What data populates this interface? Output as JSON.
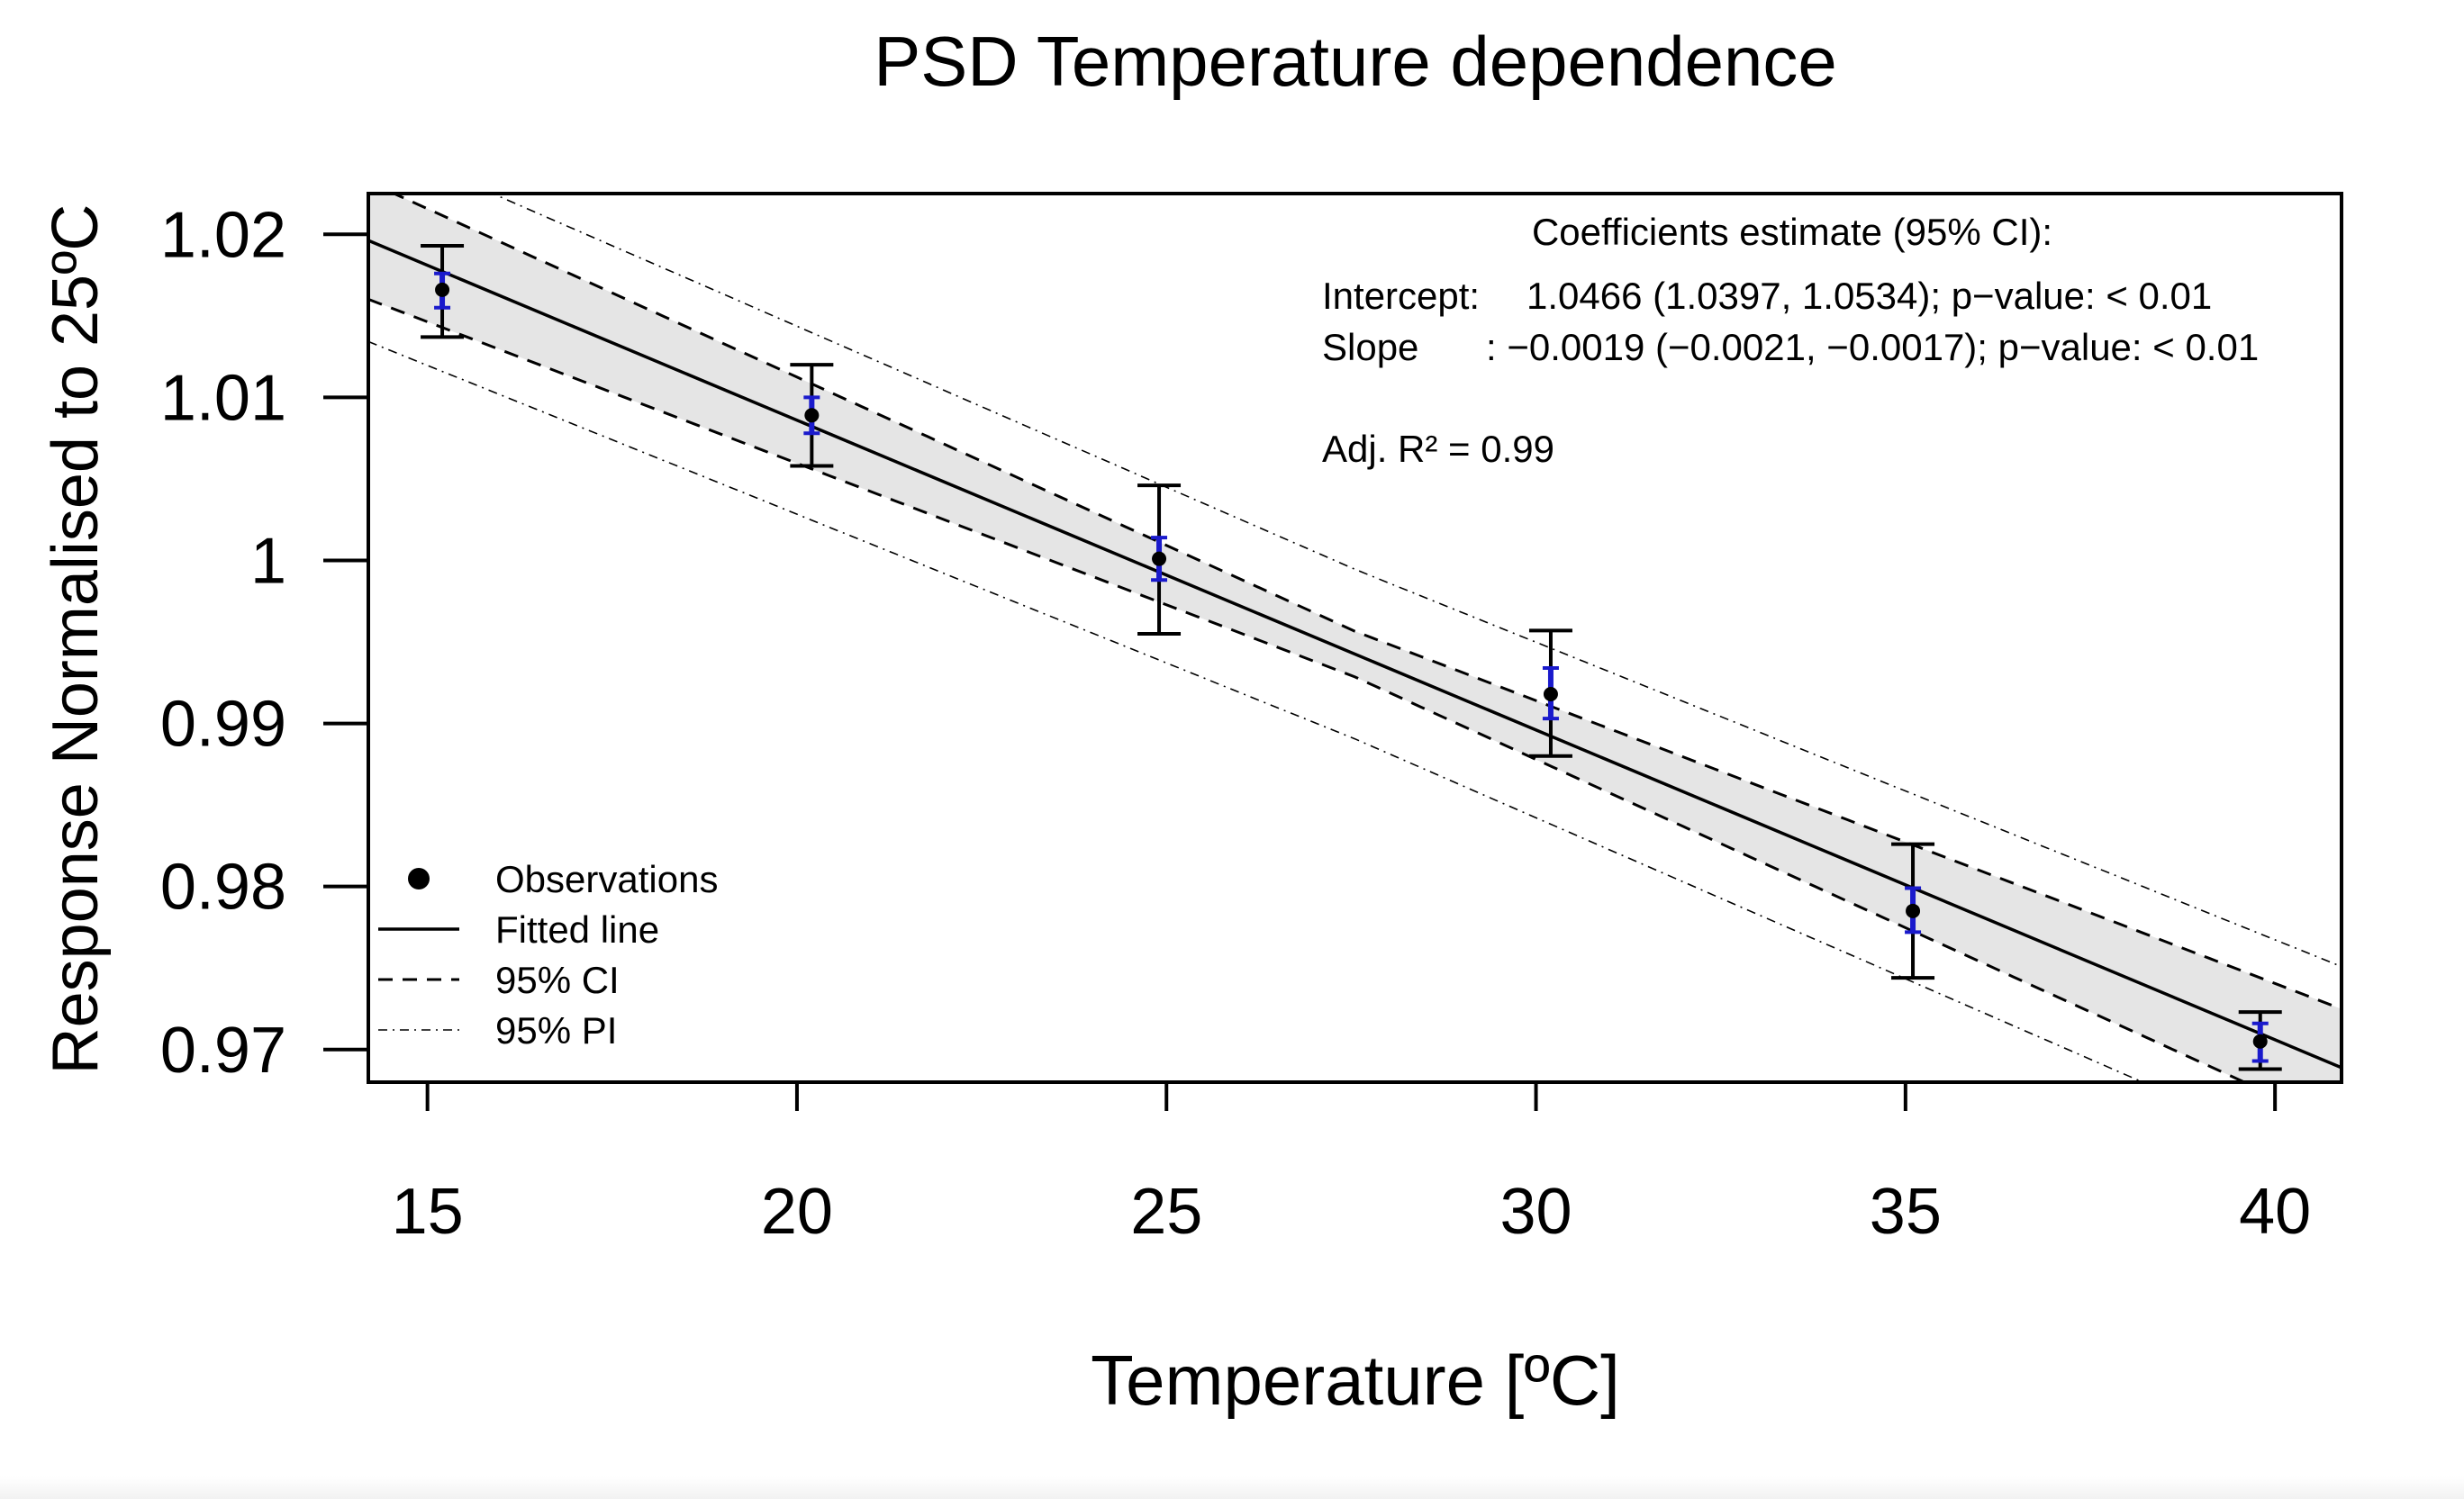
{
  "chart_data": {
    "type": "scatter",
    "title": "PSD Temperature dependence",
    "xlabel": "Temperature [ºC]",
    "ylabel": "Response Normalised to 25ºC",
    "xlim": [
      14.2,
      40.9
    ],
    "ylim": [
      0.968,
      1.0225
    ],
    "x_ticks": [
      15,
      20,
      25,
      30,
      35,
      40
    ],
    "x_tick_labels": [
      "15",
      "20",
      "25",
      "30",
      "35",
      "40"
    ],
    "y_ticks": [
      0.97,
      0.98,
      0.99,
      1.0,
      1.01,
      1.02
    ],
    "y_tick_labels": [
      "0.97",
      "0.98",
      "0.99",
      "1",
      "1.01",
      "1.02"
    ],
    "grid": false,
    "legend_position": "bottom-left",
    "legend": [
      {
        "label": "Observations",
        "style": "point"
      },
      {
        "label": "Fitted line",
        "style": "solid"
      },
      {
        "label": "95% CI",
        "style": "dashed"
      },
      {
        "label": "95% PI",
        "style": "dotdash"
      }
    ],
    "fit": {
      "intercept": 1.0466,
      "slope": -0.0019
    },
    "ci_band_halfwidth": [
      0.0036,
      0.0014,
      0.0036
    ],
    "pi_band_halfwidth": [
      0.0062,
      0.0052,
      0.0062
    ],
    "series": [
      {
        "name": "Observations",
        "x": [
          15.2,
          20.2,
          24.9,
          30.2,
          35.1,
          39.8
        ],
        "y": [
          1.0166,
          1.0089,
          1.0001,
          0.9918,
          0.9785,
          0.9705
        ],
        "err_low": [
          1.0137,
          1.0058,
          0.9955,
          0.988,
          0.9744,
          0.9688
        ],
        "err_high": [
          1.0193,
          1.012,
          1.0046,
          0.9957,
          0.9826,
          0.9723
        ],
        "inner_err_low": [
          1.0155,
          1.0078,
          0.9988,
          0.9903,
          0.9772,
          0.9693
        ],
        "inner_err_high": [
          1.0176,
          1.01,
          1.0014,
          0.9934,
          0.9799,
          0.9716
        ]
      }
    ],
    "annotation": {
      "header": "Coefficients estimate (95% CI):",
      "intercept_label": "Intercept:",
      "intercept_value": "1.0466 (1.0397, 1.0534); p−value: < 0.01",
      "slope_label": "Slope",
      "slope_value": ": −0.0019 (−0.0021, −0.0017); p−value: < 0.01",
      "r2": "Adj. R² = 0.99"
    }
  },
  "colors": {
    "band": "#e5e5e5",
    "lines": "#000000",
    "inner_error": "#1a1acc"
  }
}
